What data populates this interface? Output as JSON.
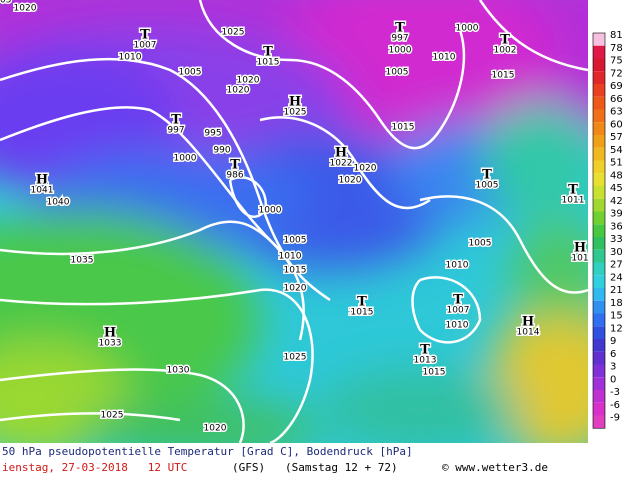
{
  "isobar_labels": [
    "1020",
    "1010",
    "1005",
    "1025",
    "1020",
    "1020",
    "995",
    "990",
    "1000",
    "1000",
    "1005",
    "1010",
    "1015",
    "1020",
    "1035",
    "1040",
    "1030",
    "1025",
    "1025",
    "1020",
    "1015",
    "1020",
    "1020",
    "1005",
    "1000",
    "1000",
    "1010",
    "1005",
    "1010",
    "1010",
    "1010",
    "1015",
    "1015",
    "1005"
  ],
  "centers": [
    {
      "symbol": "T",
      "label": "1007"
    },
    {
      "symbol": "T",
      "label": "1015"
    },
    {
      "symbol": "H",
      "label": "1025"
    },
    {
      "symbol": "T",
      "label": "997"
    },
    {
      "symbol": "T",
      "label": "986"
    },
    {
      "symbol": "H",
      "label": "1022"
    },
    {
      "symbol": "H",
      "label": "1041"
    },
    {
      "symbol": "T",
      "label": "997"
    },
    {
      "symbol": "T",
      "label": "1002"
    },
    {
      "symbol": "T",
      "label": "1005"
    },
    {
      "symbol": "T",
      "label": "1011"
    },
    {
      "symbol": "H",
      "label": "101"
    },
    {
      "symbol": "T",
      "label": "1015"
    },
    {
      "symbol": "H",
      "label": "1033"
    },
    {
      "symbol": "T",
      "label": "1007"
    },
    {
      "symbol": "H",
      "label": "1014"
    },
    {
      "symbol": "T",
      "label": "1013"
    }
  ],
  "colorbar": {
    "labels": [
      "81",
      "78",
      "75",
      "72",
      "69",
      "66",
      "63",
      "60",
      "57",
      "54",
      "51",
      "48",
      "45",
      "42",
      "39",
      "36",
      "33",
      "30",
      "27",
      "24",
      "21",
      "18",
      "15",
      "12",
      "9",
      "6",
      "3",
      "0",
      "-3",
      "-6",
      "-9"
    ]
  },
  "footer": {
    "title": "50 hPa pseudopotentielle Temperatur [Grad C], Bodendruck [hPa]",
    "date": "ienstag, 27-03-2018   12 UTC",
    "model": "(GFS)",
    "run": "(Samstag 12 + 72)",
    "source": "© www.wetter3.de"
  }
}
